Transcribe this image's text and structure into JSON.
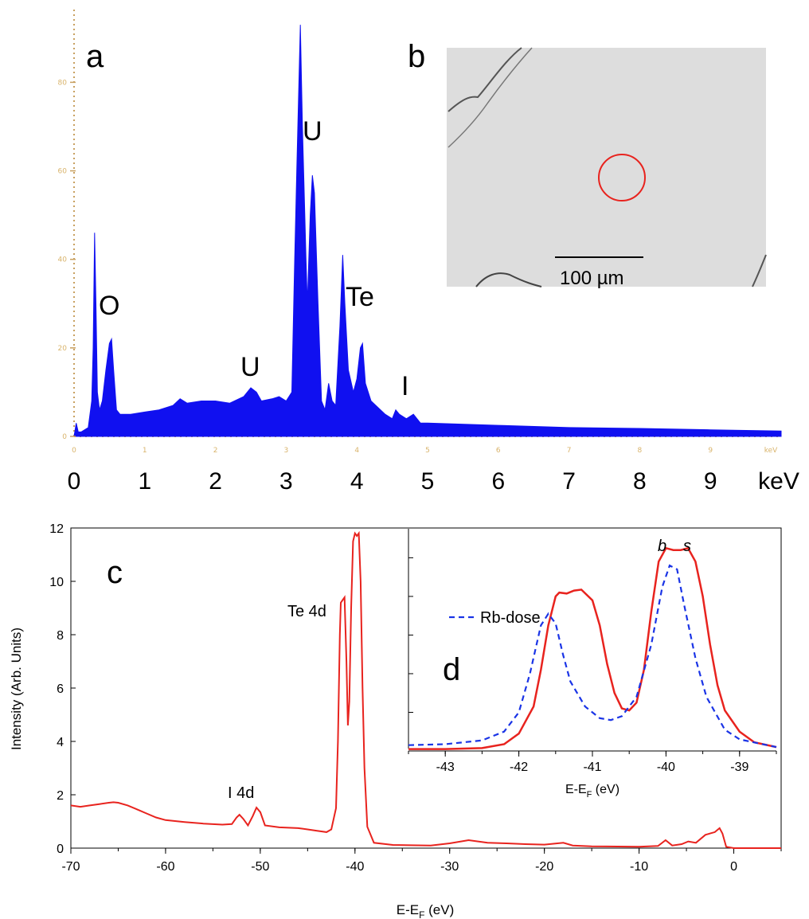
{
  "chart_data": [
    {
      "panel": "a",
      "type": "area",
      "x_unit": "keV",
      "x_tick_labels": [
        "0",
        "1",
        "2",
        "3",
        "4",
        "5",
        "6",
        "7",
        "8",
        "9",
        "keV"
      ],
      "small_x_tick_labels": [
        "0",
        "1",
        "2",
        "3",
        "4",
        "5",
        "6",
        "7",
        "8",
        "9",
        "keV"
      ],
      "y_tick_labels": [
        "0",
        "20",
        "40",
        "60",
        "80"
      ],
      "xlim": [
        0,
        10
      ],
      "ylim": [
        0,
        95
      ],
      "color": "#1010f0",
      "points": [
        [
          0,
          0
        ],
        [
          0.03,
          3
        ],
        [
          0.06,
          1
        ],
        [
          0.1,
          1
        ],
        [
          0.2,
          2
        ],
        [
          0.25,
          8
        ],
        [
          0.27,
          20
        ],
        [
          0.29,
          46
        ],
        [
          0.31,
          30
        ],
        [
          0.33,
          10
        ],
        [
          0.36,
          6
        ],
        [
          0.4,
          8
        ],
        [
          0.45,
          15
        ],
        [
          0.5,
          21
        ],
        [
          0.53,
          22
        ],
        [
          0.56,
          15
        ],
        [
          0.6,
          6
        ],
        [
          0.65,
          5
        ],
        [
          0.8,
          5
        ],
        [
          1.0,
          5.5
        ],
        [
          1.2,
          6
        ],
        [
          1.4,
          7
        ],
        [
          1.5,
          8.5
        ],
        [
          1.6,
          7.5
        ],
        [
          1.8,
          8
        ],
        [
          2.0,
          8
        ],
        [
          2.2,
          7.5
        ],
        [
          2.4,
          9
        ],
        [
          2.5,
          11
        ],
        [
          2.58,
          10
        ],
        [
          2.65,
          8
        ],
        [
          2.8,
          8.5
        ],
        [
          2.9,
          9
        ],
        [
          3.0,
          8
        ],
        [
          3.08,
          10
        ],
        [
          3.12,
          40
        ],
        [
          3.15,
          60
        ],
        [
          3.18,
          80
        ],
        [
          3.2,
          93
        ],
        [
          3.23,
          70
        ],
        [
          3.28,
          40
        ],
        [
          3.3,
          30
        ],
        [
          3.34,
          50
        ],
        [
          3.37,
          59
        ],
        [
          3.4,
          55
        ],
        [
          3.45,
          30
        ],
        [
          3.5,
          8
        ],
        [
          3.55,
          6
        ],
        [
          3.6,
          12
        ],
        [
          3.65,
          8
        ],
        [
          3.7,
          7
        ],
        [
          3.76,
          25
        ],
        [
          3.8,
          41
        ],
        [
          3.83,
          30
        ],
        [
          3.88,
          15
        ],
        [
          3.95,
          10
        ],
        [
          4.0,
          13
        ],
        [
          4.05,
          20
        ],
        [
          4.08,
          21
        ],
        [
          4.12,
          12
        ],
        [
          4.2,
          8
        ],
        [
          4.4,
          5
        ],
        [
          4.5,
          4
        ],
        [
          4.55,
          6
        ],
        [
          4.6,
          5
        ],
        [
          4.7,
          4
        ],
        [
          4.8,
          5
        ],
        [
          4.9,
          3
        ],
        [
          5.0,
          3
        ],
        [
          6.0,
          2.5
        ],
        [
          7.0,
          2
        ],
        [
          8.0,
          1.8
        ],
        [
          9.0,
          1.5
        ],
        [
          10.0,
          1.2
        ]
      ],
      "annotations": [
        "O",
        "U",
        "U",
        "Te",
        "I"
      ]
    },
    {
      "panel": "b",
      "type": "image",
      "scale_bar_label": "100 µm",
      "marker_color": "#e8231e"
    },
    {
      "panel": "c",
      "type": "line",
      "xlabel": "E-E",
      "xlabel_sub": "F",
      "xlabel_unit": " (eV)",
      "ylabel": "Intensity (Arb. Units)",
      "xlim": [
        -70,
        5
      ],
      "ylim": [
        0,
        12
      ],
      "x_ticks": [
        -70,
        -60,
        -50,
        -40,
        -30,
        -20,
        -10,
        0
      ],
      "y_ticks": [
        0,
        2,
        4,
        6,
        8,
        10,
        12
      ],
      "color": "#e8231e",
      "annotations": [
        "Te 4d",
        "I 4d"
      ],
      "points": [
        [
          -70,
          1.6
        ],
        [
          -69,
          1.55
        ],
        [
          -68,
          1.6
        ],
        [
          -67,
          1.65
        ],
        [
          -66,
          1.7
        ],
        [
          -65.5,
          1.72
        ],
        [
          -65,
          1.7
        ],
        [
          -64,
          1.6
        ],
        [
          -63,
          1.45
        ],
        [
          -62,
          1.3
        ],
        [
          -61,
          1.15
        ],
        [
          -60,
          1.05
        ],
        [
          -58,
          0.98
        ],
        [
          -56,
          0.92
        ],
        [
          -54,
          0.88
        ],
        [
          -53,
          0.9
        ],
        [
          -52.5,
          1.15
        ],
        [
          -52.2,
          1.25
        ],
        [
          -51.8,
          1.1
        ],
        [
          -51.3,
          0.85
        ],
        [
          -50.8,
          1.2
        ],
        [
          -50.4,
          1.52
        ],
        [
          -50,
          1.35
        ],
        [
          -49.5,
          0.85
        ],
        [
          -48,
          0.78
        ],
        [
          -46,
          0.75
        ],
        [
          -45,
          0.7
        ],
        [
          -44,
          0.65
        ],
        [
          -43,
          0.6
        ],
        [
          -42.5,
          0.7
        ],
        [
          -42,
          1.5
        ],
        [
          -41.8,
          4
        ],
        [
          -41.6,
          8
        ],
        [
          -41.5,
          9.2
        ],
        [
          -41.3,
          9.3
        ],
        [
          -41.1,
          9.4
        ],
        [
          -40.9,
          7
        ],
        [
          -40.75,
          4.6
        ],
        [
          -40.6,
          5.5
        ],
        [
          -40.4,
          9
        ],
        [
          -40.2,
          11.5
        ],
        [
          -40.0,
          11.8
        ],
        [
          -39.8,
          11.7
        ],
        [
          -39.6,
          11.8
        ],
        [
          -39.4,
          10
        ],
        [
          -39.2,
          6
        ],
        [
          -39,
          3
        ],
        [
          -38.7,
          0.8
        ],
        [
          -38,
          0.2
        ],
        [
          -36,
          0.12
        ],
        [
          -32,
          0.1
        ],
        [
          -30,
          0.18
        ],
        [
          -28,
          0.3
        ],
        [
          -26,
          0.2
        ],
        [
          -24,
          0.18
        ],
        [
          -22,
          0.15
        ],
        [
          -20,
          0.13
        ],
        [
          -18,
          0.2
        ],
        [
          -17,
          0.1
        ],
        [
          -15,
          0.07
        ],
        [
          -10,
          0.05
        ],
        [
          -8,
          0.08
        ],
        [
          -7.2,
          0.3
        ],
        [
          -6.5,
          0.1
        ],
        [
          -5.5,
          0.15
        ],
        [
          -4.8,
          0.25
        ],
        [
          -4,
          0.2
        ],
        [
          -3,
          0.5
        ],
        [
          -2.5,
          0.55
        ],
        [
          -2,
          0.6
        ],
        [
          -1.5,
          0.75
        ],
        [
          -1.2,
          0.55
        ],
        [
          -0.8,
          0.05
        ],
        [
          0,
          0
        ],
        [
          5,
          0
        ]
      ]
    },
    {
      "panel": "d",
      "type": "line",
      "xlabel": "E-E",
      "xlabel_sub": "F",
      "xlabel_unit": " (eV)",
      "xlim": [
        -43.5,
        -38.5
      ],
      "x_ticks": [
        -43,
        -42,
        -41,
        -40,
        -39
      ],
      "ylim": [
        0,
        11.5
      ],
      "annotations": [
        "b",
        "s"
      ],
      "series": [
        {
          "name": "",
          "color": "#e8231e",
          "style": "solid",
          "points": [
            [
              -43.5,
              0.1
            ],
            [
              -43,
              0.1
            ],
            [
              -42.5,
              0.15
            ],
            [
              -42.2,
              0.35
            ],
            [
              -42,
              0.9
            ],
            [
              -41.8,
              2.3
            ],
            [
              -41.7,
              4.2
            ],
            [
              -41.6,
              6.5
            ],
            [
              -41.5,
              8
            ],
            [
              -41.45,
              8.2
            ],
            [
              -41.35,
              8.15
            ],
            [
              -41.25,
              8.3
            ],
            [
              -41.15,
              8.35
            ],
            [
              -41.0,
              7.8
            ],
            [
              -40.9,
              6.5
            ],
            [
              -40.8,
              4.5
            ],
            [
              -40.7,
              3.0
            ],
            [
              -40.6,
              2.2
            ],
            [
              -40.5,
              2.1
            ],
            [
              -40.4,
              2.5
            ],
            [
              -40.3,
              4.2
            ],
            [
              -40.2,
              7.2
            ],
            [
              -40.1,
              9.8
            ],
            [
              -40.0,
              10.5
            ],
            [
              -39.9,
              10.4
            ],
            [
              -39.8,
              10.4
            ],
            [
              -39.7,
              10.5
            ],
            [
              -39.6,
              9.8
            ],
            [
              -39.5,
              8
            ],
            [
              -39.4,
              5.5
            ],
            [
              -39.3,
              3.4
            ],
            [
              -39.2,
              2.1
            ],
            [
              -39.0,
              1.0
            ],
            [
              -38.8,
              0.45
            ],
            [
              -38.5,
              0.2
            ]
          ]
        },
        {
          "name": "Rb-dose",
          "color": "#1a34e6",
          "style": "dashed",
          "points": [
            [
              -43.5,
              0.3
            ],
            [
              -43,
              0.35
            ],
            [
              -42.5,
              0.55
            ],
            [
              -42.2,
              1.0
            ],
            [
              -42.0,
              2.0
            ],
            [
              -41.85,
              4.0
            ],
            [
              -41.7,
              6.5
            ],
            [
              -41.6,
              7.1
            ],
            [
              -41.5,
              6.6
            ],
            [
              -41.4,
              5.0
            ],
            [
              -41.3,
              3.6
            ],
            [
              -41.1,
              2.3
            ],
            [
              -40.9,
              1.7
            ],
            [
              -40.75,
              1.6
            ],
            [
              -40.6,
              1.8
            ],
            [
              -40.4,
              2.8
            ],
            [
              -40.2,
              5.5
            ],
            [
              -40.05,
              8.5
            ],
            [
              -39.95,
              9.6
            ],
            [
              -39.85,
              9.4
            ],
            [
              -39.75,
              7.5
            ],
            [
              -39.6,
              4.8
            ],
            [
              -39.45,
              2.8
            ],
            [
              -39.2,
              1.1
            ],
            [
              -39.0,
              0.6
            ],
            [
              -38.5,
              0.2
            ]
          ]
        }
      ]
    }
  ],
  "labels": {
    "panel_a": "a",
    "panel_b": "b",
    "panel_c": "c",
    "panel_d": "d"
  }
}
